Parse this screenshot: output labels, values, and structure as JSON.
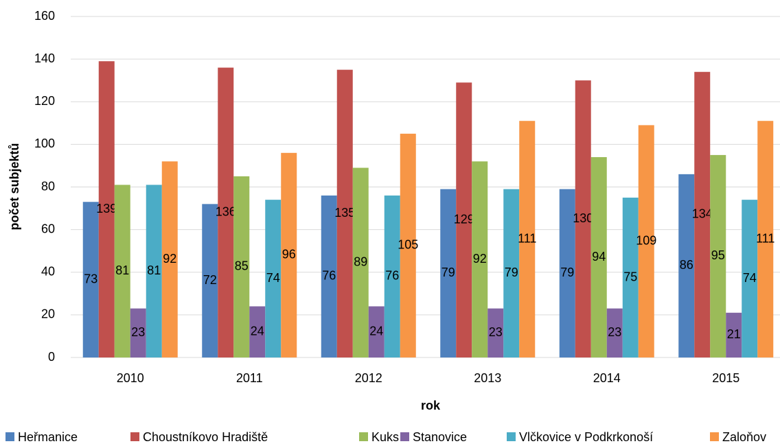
{
  "chart_data": {
    "type": "bar",
    "categories": [
      "2010",
      "2011",
      "2012",
      "2013",
      "2014",
      "2015"
    ],
    "series": [
      {
        "name": "Heřmanice",
        "color": "#4f81bd",
        "values": [
          73,
          72,
          76,
          79,
          79,
          86
        ]
      },
      {
        "name": "Choustníkovo Hradiště",
        "color": "#c0504d",
        "values": [
          139,
          136,
          135,
          129,
          130,
          134
        ]
      },
      {
        "name": "Kuks",
        "color": "#9bbb59",
        "values": [
          81,
          85,
          89,
          92,
          94,
          95
        ]
      },
      {
        "name": "Stanovice",
        "color": "#8064a2",
        "values": [
          23,
          24,
          24,
          23,
          23,
          21
        ]
      },
      {
        "name": "Vlčkovice v Podkrkonoší",
        "color": "#4bacc6",
        "values": [
          81,
          74,
          76,
          79,
          75,
          74
        ]
      },
      {
        "name": "Zaloňov",
        "color": "#f79646",
        "values": [
          92,
          96,
          105,
          111,
          109,
          111
        ]
      }
    ],
    "xlabel": "rok",
    "ylabel": "počet subjektů",
    "ylim": [
      0,
      160
    ],
    "yticks": [
      0,
      20,
      40,
      60,
      80,
      100,
      120,
      140,
      160
    ],
    "grid": true,
    "legend": "bottom"
  }
}
